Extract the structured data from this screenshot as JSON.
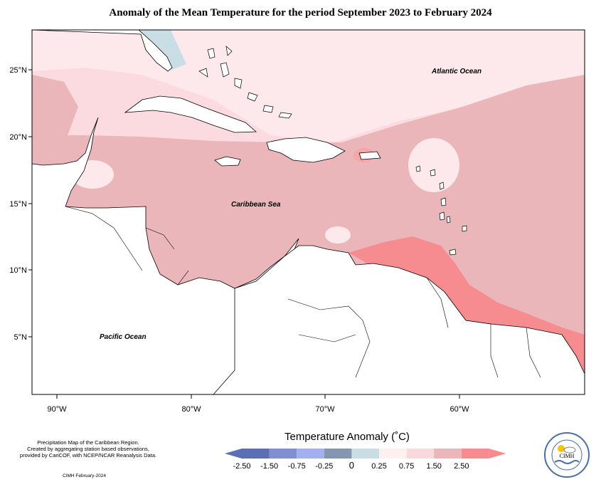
{
  "title": "Anomaly of the Mean Temperature for the period September 2023 to February 2024",
  "map": {
    "lat_ticks": [
      "25°N",
      "20°N",
      "15°N",
      "10°N",
      "5°N"
    ],
    "lon_ticks": [
      "90°W",
      "80°W",
      "70°W",
      "60°W"
    ],
    "labels": {
      "atlantic": "Atlantic Ocean",
      "caribbean": "Caribbean Sea",
      "pacific": "Pacific Ocean"
    }
  },
  "legend": {
    "title": "Temperature Anomaly (˚C)",
    "tick_labels": [
      "-2.50",
      "-1.50",
      "-0.75",
      "-0.25",
      "0",
      "0.25",
      "0.75",
      "1.50",
      "2.50"
    ],
    "colors": [
      "#5b6fb5",
      "#7f8fd1",
      "#a3b0f0",
      "#8497b1",
      "#c8dee4",
      "#fff0f0",
      "#f8d9de",
      "#ebb6ba",
      "#f68c8f"
    ]
  },
  "credits": {
    "line1": "Precipitation Map of the Caribbean Region.",
    "line2": "Created by aggregating station based observations,",
    "line3": "provided by CariCOF, with NCEP/NCAR Reanalysis Data.",
    "date": "CIMH February-2024"
  },
  "logo": {
    "name": "CIMH",
    "ring_text": "Caribbean Institute for Meteorology and Hydrology"
  }
}
